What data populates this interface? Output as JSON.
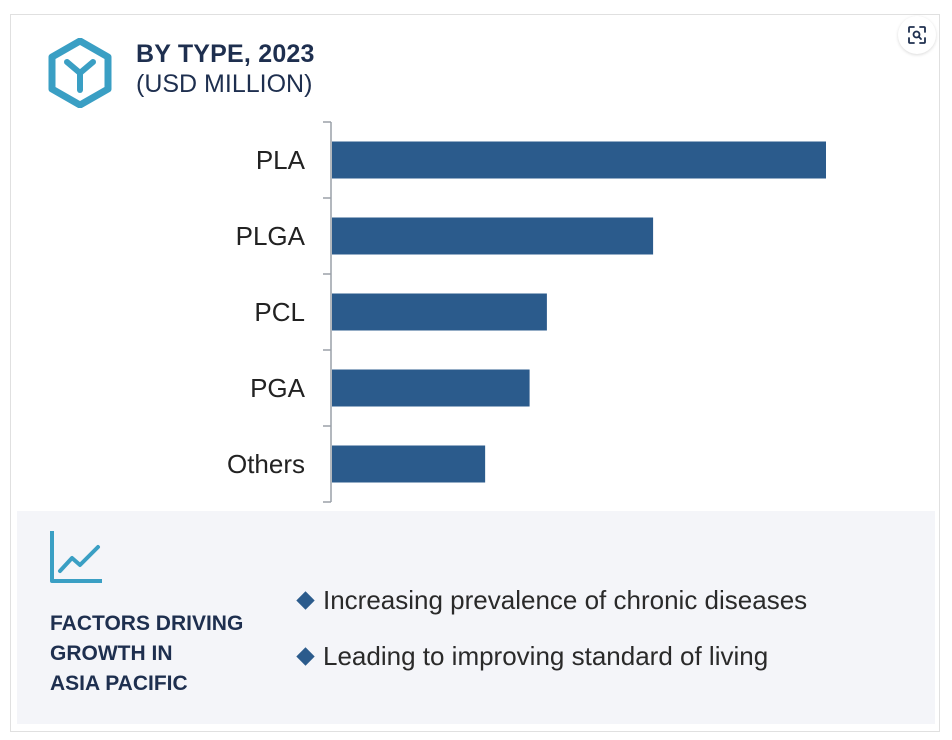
{
  "header": {
    "title": "BY TYPE, 2023",
    "subtitle": "(USD MILLION)"
  },
  "icons": {
    "logo": "hexagon-y-logo-icon",
    "zoom": "zoom-icon",
    "factors": "trend-chart-icon"
  },
  "colors": {
    "bar": "#2b5b8c",
    "accent": "#3a9fc4",
    "title": "#1e2f4f",
    "factors_bg": "#f4f5f9"
  },
  "chart_data": {
    "type": "bar",
    "orientation": "horizontal",
    "title": "BY TYPE, 2023",
    "subtitle": "(USD MILLION)",
    "categories": [
      "PLA",
      "PLGA",
      "PCL",
      "PGA",
      "Others"
    ],
    "values": [
      100,
      65,
      43.5,
      40,
      31
    ],
    "xlabel": "",
    "ylabel": "",
    "xlim": [
      0,
      100
    ],
    "grid": false
  },
  "factors": {
    "title_lines": [
      "FACTORS DRIVING",
      "GROWTH IN",
      "ASIA PACIFIC"
    ],
    "items": [
      "Increasing prevalence of chronic diseases",
      "Leading to improving standard of living"
    ]
  }
}
